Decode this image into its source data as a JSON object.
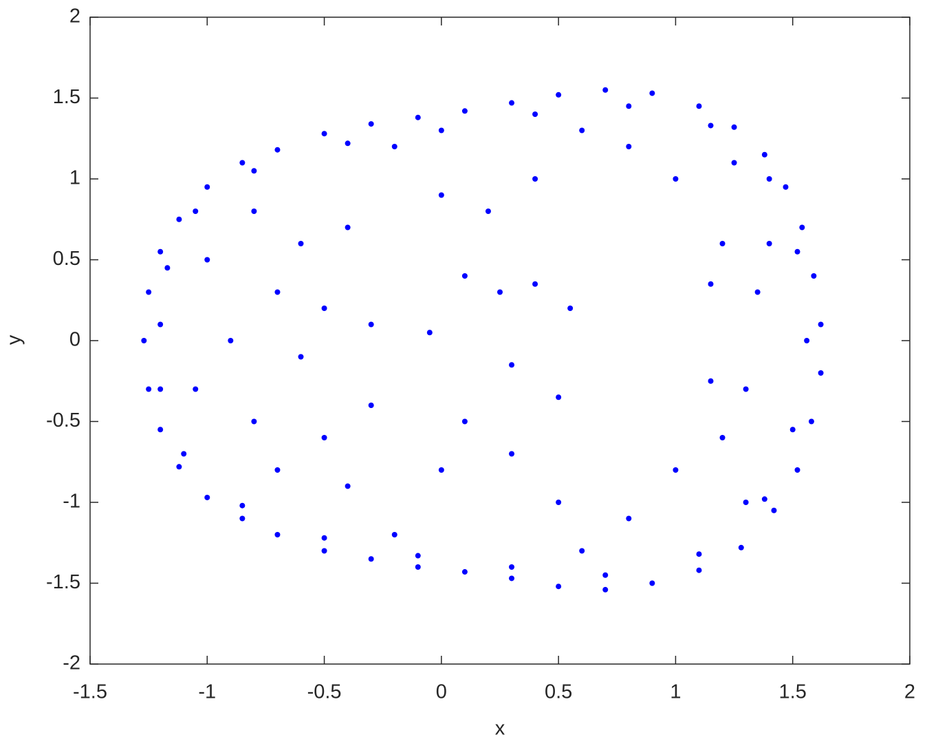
{
  "chart_data": {
    "type": "scatter",
    "xlabel": "x",
    "ylabel": "y",
    "color": "#0000ff",
    "xlim": [
      -1.5,
      2
    ],
    "ylim": [
      -2,
      2
    ],
    "xticks": [
      -1.5,
      -1,
      -0.5,
      0,
      0.5,
      1,
      1.5,
      2
    ],
    "yticks": [
      -2,
      -1.5,
      -1,
      -0.5,
      0,
      0.5,
      1,
      1.5,
      2
    ],
    "x": [
      -1.27,
      -1.25,
      -1.2,
      -1.12,
      -1.0,
      -0.85,
      -0.7,
      -0.5,
      -0.3,
      -0.1,
      0.1,
      0.3,
      0.5,
      0.7,
      0.9,
      1.1,
      1.25,
      1.38,
      1.47,
      1.54,
      1.59,
      1.62,
      1.62,
      1.58,
      1.52,
      1.42,
      1.28,
      1.1,
      0.9,
      0.7,
      0.5,
      0.3,
      0.1,
      -0.1,
      -0.3,
      -0.5,
      -0.7,
      -0.85,
      -1.0,
      -1.12,
      -1.2,
      -1.25,
      -1.2,
      -1.17,
      -1.05,
      -0.8,
      -0.4,
      0,
      0.4,
      0.8,
      1.15,
      1.4,
      1.52,
      1.56,
      1.5,
      1.38,
      1.1,
      0.7,
      0.3,
      -0.1,
      -0.5,
      -0.85,
      -1.1,
      -1.2,
      -0.8,
      -0.6,
      -0.4,
      -0.7,
      -0.5,
      -0.9,
      -0.6,
      -0.3,
      -0.8,
      -0.5,
      -0.3,
      -0.7,
      -0.4,
      0,
      0.2,
      0.4,
      0.1,
      -0.05,
      0.25,
      0.4,
      0.55,
      0.3,
      0.5,
      0.1,
      0,
      0.3,
      0.5,
      0.8,
      1.0,
      1.2,
      1.15,
      1.15,
      1.2,
      1.0,
      0.8,
      1.35,
      1.3,
      1.4,
      -1.0,
      -1.05,
      0.6,
      -0.2,
      -0.2,
      0.6,
      1.25,
      1.3
    ],
    "values": [
      0,
      0.3,
      0.55,
      0.75,
      0.95,
      1.1,
      1.18,
      1.28,
      1.34,
      1.38,
      1.42,
      1.47,
      1.52,
      1.55,
      1.53,
      1.45,
      1.32,
      1.15,
      0.95,
      0.7,
      0.4,
      0.1,
      -0.2,
      -0.5,
      -0.8,
      -1.05,
      -1.28,
      -1.42,
      -1.5,
      -1.54,
      -1.52,
      -1.47,
      -1.43,
      -1.4,
      -1.35,
      -1.3,
      -1.2,
      -1.1,
      -0.97,
      -0.78,
      -0.55,
      -0.3,
      0.1,
      0.45,
      0.8,
      1.05,
      1.22,
      1.3,
      1.4,
      1.45,
      1.33,
      1.0,
      0.55,
      0,
      -0.55,
      -0.98,
      -1.32,
      -1.45,
      -1.4,
      -1.33,
      -1.22,
      -1.02,
      -0.7,
      -0.3,
      0.8,
      0.6,
      0.7,
      0.3,
      0.2,
      0,
      -0.1,
      0.1,
      -0.5,
      -0.6,
      -0.4,
      -0.8,
      -0.9,
      0.9,
      0.8,
      1.0,
      0.4,
      0.05,
      0.3,
      0.35,
      0.2,
      -0.15,
      -0.35,
      -0.5,
      -0.8,
      -0.7,
      -1.0,
      -1.1,
      -0.8,
      -0.6,
      -0.25,
      0.35,
      0.6,
      1.0,
      1.2,
      0.3,
      -0.3,
      0.6,
      0.5,
      -0.3,
      -1.3,
      -1.2,
      1.2,
      1.3,
      1.1,
      -1.0
    ]
  }
}
